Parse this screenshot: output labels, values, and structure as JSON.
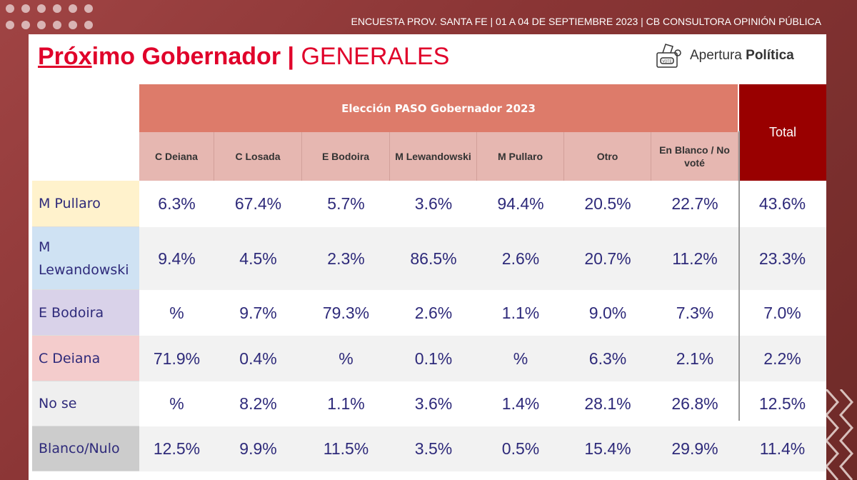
{
  "header": {
    "survey_info": "ENCUESTA PROV. SANTA FE | 01 A 04 DE SEPTIEMBRE 2023 | CB CONSULTORA OPINIÓN PÚBLICA"
  },
  "title": {
    "part1": "Próx",
    "part2": "imo Gobernador",
    "separator": " | ",
    "part3": "GENERALES"
  },
  "logo": {
    "text_regular": "Apertura ",
    "text_bold": "Política",
    "icon_label": "VOTE"
  },
  "table": {
    "group_header": "Elección PASO Gobernador 2023",
    "total_header": "Total",
    "columns": [
      "C Deiana",
      "C Losada",
      "E Bodoira",
      "M Lewandowski",
      "M Pullaro",
      "Otro",
      "En Blanco / No voté"
    ],
    "rows": [
      {
        "label": "M Pullaro",
        "color": "#fff2cc",
        "values": [
          "6.3%",
          "67.4%",
          "5.7%",
          "3.6%",
          "94.4%",
          "20.5%",
          "22.7%"
        ],
        "total": "43.6%"
      },
      {
        "label": "M Lewandowski",
        "color": "#cfe2f3",
        "values": [
          "9.4%",
          "4.5%",
          "2.3%",
          "86.5%",
          "2.6%",
          "20.7%",
          "11.2%"
        ],
        "total": "23.3%"
      },
      {
        "label": "E Bodoira",
        "color": "#d9d2e9",
        "values": [
          "%",
          "9.7%",
          "79.3%",
          "2.6%",
          "1.1%",
          "9.0%",
          "7.3%"
        ],
        "total": "7.0%"
      },
      {
        "label": "C Deiana",
        "color": "#f4cccc",
        "values": [
          "71.9%",
          "0.4%",
          "%",
          "0.1%",
          "%",
          "6.3%",
          "2.1%"
        ],
        "total": "2.2%"
      },
      {
        "label": "No se",
        "color": "#efefef",
        "values": [
          "%",
          "8.2%",
          "1.1%",
          "3.6%",
          "1.4%",
          "28.1%",
          "26.8%"
        ],
        "total": "12.5%"
      },
      {
        "label": "Blanco/Nulo",
        "color": "#cccccc",
        "values": [
          "12.5%",
          "9.9%",
          "11.5%",
          "3.5%",
          "0.5%",
          "15.4%",
          "29.9%"
        ],
        "total": "11.4%"
      }
    ]
  }
}
